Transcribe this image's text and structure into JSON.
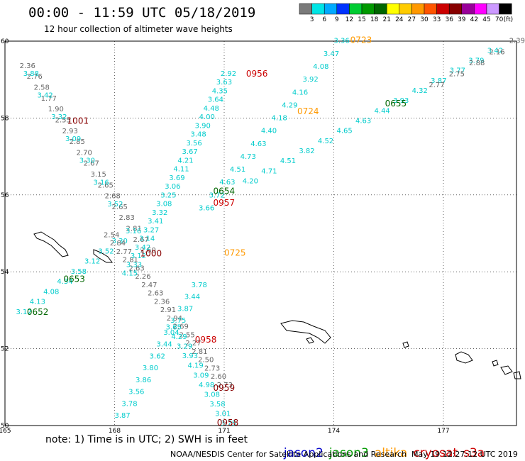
{
  "title": "00:00 - 11:59 UTC 05/18/2019",
  "subtitle": "12 hour collection of altimeter wave heights",
  "colorbar": {
    "unit": "(ft)",
    "ticks": [
      "3",
      "6",
      "9",
      "12",
      "15",
      "18",
      "21",
      "24",
      "27",
      "30",
      "33",
      "36",
      "39",
      "42",
      "45",
      "70"
    ],
    "colors": [
      "#7a7a7a",
      "#00e5e5",
      "#00aaff",
      "#0033ff",
      "#00cc33",
      "#009900",
      "#006600",
      "#ffff00",
      "#ffcc00",
      "#ff9900",
      "#ff5500",
      "#cc0000",
      "#880000",
      "#990099",
      "#ff00ff",
      "#cc99ff",
      "#000000"
    ]
  },
  "map": {
    "lon_range": [
      165,
      179
    ],
    "lat_range": [
      50,
      60
    ],
    "lon_ticks": [
      "165",
      "168",
      "171",
      "174",
      "177"
    ],
    "lat_ticks": [
      "60",
      "58",
      "56",
      "54",
      "52",
      "50"
    ],
    "pass_labels": [
      {
        "text": "0723",
        "color": "#ff9900",
        "lon": 174.45,
        "lat": 59.95
      },
      {
        "text": "0956",
        "color": "#cc0000",
        "lon": 171.6,
        "lat": 59.08
      },
      {
        "text": "1001",
        "color": "#880000",
        "lon": 166.7,
        "lat": 57.85
      },
      {
        "text": "0724",
        "color": "#ff9900",
        "lon": 173.0,
        "lat": 58.1
      },
      {
        "text": "0655",
        "color": "#006600",
        "lon": 175.4,
        "lat": 58.3
      },
      {
        "text": "0654",
        "color": "#006600",
        "lon": 170.7,
        "lat": 56.02
      },
      {
        "text": "0957",
        "color": "#cc0000",
        "lon": 170.7,
        "lat": 55.72
      },
      {
        "text": "0725",
        "color": "#ff9900",
        "lon": 171.0,
        "lat": 54.42
      },
      {
        "text": "1000",
        "color": "#880000",
        "lon": 168.7,
        "lat": 54.4
      },
      {
        "text": "0653",
        "color": "#006600",
        "lon": 166.6,
        "lat": 53.74
      },
      {
        "text": "0652",
        "color": "#006600",
        "lon": 165.6,
        "lat": 52.88
      },
      {
        "text": "0958",
        "color": "#cc0000",
        "lon": 170.2,
        "lat": 52.16
      },
      {
        "text": "0959",
        "color": "#880000",
        "lon": 170.7,
        "lat": 50.9
      },
      {
        "text": "0958",
        "color": "#880000",
        "lon": 170.8,
        "lat": 50.0
      }
    ],
    "tracks": [
      {
        "name": "gray-west",
        "color": "#666666",
        "lon0": 165.4,
        "lat0": 59.3,
        "lon1": 168.7,
        "lat1": 54.5,
        "values": [
          "2.36",
          "2.76",
          "2.58",
          "1.77",
          "1.90",
          "2.55",
          "2.93",
          "2.85",
          "2.70",
          "2.67",
          "3.15",
          "2.65",
          "2.68",
          "2.65",
          "2.83",
          "2.81",
          "2.67",
          "2.60"
        ]
      },
      {
        "name": "cyan-west",
        "color": "#00cccc",
        "lon0": 165.5,
        "lat0": 59.1,
        "lon1": 167.8,
        "lat1": 55.7,
        "values": [
          "3.88",
          "3.42",
          "3.32",
          "3.09",
          "3.30",
          "3.16",
          "3.52"
        ]
      },
      {
        "name": "cyan-sw",
        "color": "#00cccc",
        "lon0": 165.3,
        "lat0": 52.9,
        "lon1": 168.3,
        "lat1": 55.0,
        "values": [
          "3.12",
          "4.13",
          "4.08",
          "4.34",
          "3.58",
          "3.12",
          "3.52",
          "3.30",
          "3.16"
        ]
      },
      {
        "name": "gray-mid",
        "color": "#666666",
        "lon0": 167.7,
        "lat0": 54.9,
        "lon1": 170.8,
        "lat1": 51.0,
        "values": [
          "2.54",
          "2.84",
          "2.77",
          "2.81",
          "2.63",
          "2.26",
          "2.47",
          "2.63",
          "2.36",
          "2.91",
          "2.94",
          "2.69",
          "2.55",
          "2.27",
          "2.81",
          "2.50",
          "2.73",
          "2.60",
          "2.73"
        ]
      },
      {
        "name": "cyan-central",
        "color": "#00cccc",
        "lon0": 168.2,
        "lat0": 53.9,
        "lon1": 170.9,
        "lat1": 59.1,
        "values": [
          "4.15",
          "3.33",
          "3.12",
          "3.42",
          "3.14",
          "3.27",
          "3.41",
          "3.32",
          "3.08",
          "3.25",
          "3.06",
          "3.69",
          "4.11",
          "4.21",
          "3.67",
          "3.56",
          "3.48",
          "3.90",
          "4.00",
          "4.48",
          "3.64",
          "4.35",
          "3.63",
          "2.92"
        ]
      },
      {
        "name": "cyan-ne",
        "color": "#00cccc",
        "lon0": 170.3,
        "lat0": 55.6,
        "lon1": 174.0,
        "lat1": 59.95,
        "values": [
          "3.66",
          "3.72",
          "4.63",
          "4.51",
          "4.73",
          "4.63",
          "4.40",
          "4.18",
          "4.29",
          "4.16",
          "3.92",
          "4.08",
          "3.47",
          "3.36"
        ]
      },
      {
        "name": "cyan-east",
        "color": "#00cccc",
        "lon0": 171.5,
        "lat0": 56.3,
        "lon1": 178.2,
        "lat1": 59.7,
        "values": [
          "4.20",
          "4.71",
          "4.51",
          "3.82",
          "4.52",
          "4.65",
          "4.63",
          "4.44",
          "3.93",
          "4.32",
          "3.87",
          "3.77",
          "3.79",
          "3.42"
        ]
      },
      {
        "name": "gray-ne",
        "color": "#666666",
        "lon0": 176.6,
        "lat0": 58.8,
        "lon1": 178.8,
        "lat1": 59.95,
        "values": [
          "2.77",
          "2.75",
          "2.88",
          "2.16",
          "2.39"
        ]
      },
      {
        "name": "cyan-south",
        "color": "#00cccc",
        "lon0": 168.0,
        "lat0": 50.2,
        "lon1": 170.1,
        "lat1": 53.6,
        "values": [
          "3.87",
          "3.78",
          "3.56",
          "3.86",
          "3.80",
          "3.62",
          "3.44",
          "3.04",
          "3.75",
          "3.87",
          "3.44",
          "3.78"
        ]
      },
      {
        "name": "cyan-south2",
        "color": "#00cccc",
        "lon0": 170.9,
        "lat0": 50.0,
        "lon1": 169.4,
        "lat1": 52.5,
        "values": [
          "3.75",
          "3.01",
          "3.58",
          "3.08",
          "4.98",
          "3.09",
          "4.19",
          "3.93",
          "3.29",
          "4.29",
          "3.65"
        ]
      }
    ]
  },
  "footnote": "note: 1) Time is in UTC; 2) SWH is in feet",
  "legend": [
    {
      "label": "jason2",
      "color": "#0000cc"
    },
    {
      "label": "jason3",
      "color": "#009900"
    },
    {
      "label": "altika",
      "color": "#ff9900"
    },
    {
      "label": "cryosat",
      "color": "#cc0000"
    },
    {
      "label": "s3a",
      "color": "#cc0000"
    }
  ],
  "credit": "NOAA/NESDIS Center for Satellite Applications and Research",
  "stamp": "May 19 12:27:12 UTC 2019"
}
